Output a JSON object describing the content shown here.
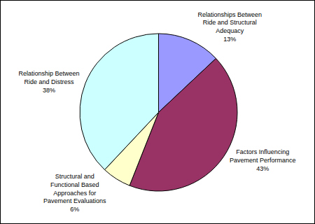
{
  "chart_data": {
    "type": "pie",
    "categories": [
      "Relationships Between Ride and Structural Adequacy",
      "Factors Influencing Pavement Performance",
      "Structural and Functional Based Approaches for Pavement Evaluations",
      "Relationship Between Ride and Distress"
    ],
    "values": [
      13,
      43,
      6,
      38
    ],
    "value_labels": [
      "13%",
      "43%",
      "6%",
      "38%"
    ],
    "colors": [
      "#9999ff",
      "#993366",
      "#ffffcc",
      "#ccffff"
    ],
    "data_labels": true
  }
}
